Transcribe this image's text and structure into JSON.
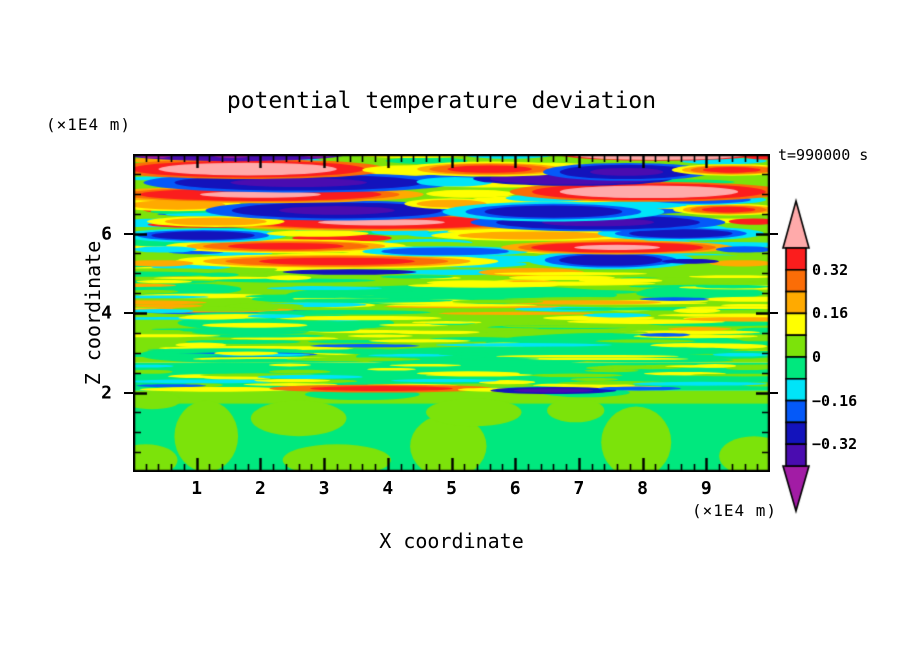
{
  "figure": {
    "title": "potential temperature deviation",
    "top_left_unit": "(×1E4 m)",
    "time_label": "t=990000 s",
    "x_axis_label": "X coordinate",
    "z_axis_label": "Z coordinate",
    "bottom_right_unit": "(×1E4 m)"
  },
  "chart_data": {
    "type": "heatmap",
    "subtype": "filled_contour",
    "title": "potential temperature deviation",
    "xlabel": "X coordinate",
    "ylabel": "Z coordinate",
    "x_units": "(×1E4 m)",
    "z_units": "(×1E4 m)",
    "time_annotation": "t=990000 s",
    "x_range": [
      0,
      10
    ],
    "z_range": [
      0,
      8
    ],
    "x_major_ticks": [
      1,
      2,
      3,
      4,
      5,
      6,
      7,
      8,
      9
    ],
    "x_minor_step": 0.2,
    "z_major_ticks": [
      2,
      4,
      6
    ],
    "z_minor_step": 0.5,
    "contour_interval": 0.08,
    "colorbar": {
      "orientation": "vertical",
      "levels_top_to_bottom": [
        0.4,
        0.32,
        0.24,
        0.16,
        0.08,
        0,
        -0.08,
        -0.16,
        -0.24,
        -0.32,
        -0.4
      ],
      "labels": [
        {
          "text": "0.32",
          "boundary_index": 1
        },
        {
          "text": "0.16",
          "boundary_index": 3
        },
        {
          "text": "0",
          "boundary_index": 5
        },
        {
          "text": "−0.16",
          "boundary_index": 7
        },
        {
          "text": "−0.32",
          "boundary_index": 9
        }
      ],
      "block_colors_top_to_bottom": [
        "red",
        "orangered",
        "orange",
        "yellow",
        "chartreuse",
        "springgreen",
        "cyan",
        "blue",
        "navy",
        "indigo"
      ],
      "over_arrow_color": "pink",
      "under_arrow_color": "magenta"
    },
    "colors": {
      "pink": "#FFAAAA",
      "red": "#FB1D1D",
      "orangered": "#FB6D07",
      "orange": "#FFAA00",
      "yellow": "#FFFF00",
      "chartreuse": "#7CE30A",
      "springgreen": "#00E87E",
      "cyan": "#00E4F8",
      "blue": "#0459F9",
      "navy": "#1313BC",
      "indigo": "#4A0CB0",
      "magenta": "#A21CA5"
    },
    "field": {
      "description": "Stratified turbulence: strong gravity-wave bands aloft (z>5, deviations beyond ±0.32), weak thin layered anomalies for 2<z<5 (mostly 0 to ±0.16), smooth convective cells below z≈2 (near 0), sharp mixed streak layer at z≈2, purple/pink extreme bands along the top edge.",
      "background_strips": [
        {
          "z0": 0.0,
          "z1": 2.05,
          "color": "springgreen"
        },
        {
          "z0": 1.72,
          "z1": 2.05,
          "color": "chartreuse"
        },
        {
          "z0": 2.05,
          "z1": 2.75,
          "color": "springgreen"
        },
        {
          "z0": 2.75,
          "z1": 8.05,
          "color": "chartreuse"
        }
      ],
      "texture_seed": 11,
      "texture": [
        {
          "z0": 5.0,
          "z1": 7.85,
          "count": 120,
          "rx": [
            0.35,
            1.2
          ],
          "rz": [
            0.05,
            0.11
          ],
          "colors": [
            {
              "c": "yellow",
              "w": 0.3
            },
            {
              "c": "cyan",
              "w": 0.2
            },
            {
              "c": "springgreen",
              "w": 0.18
            },
            {
              "c": "chartreuse",
              "w": 0.12
            },
            {
              "c": "orange",
              "w": 0.08
            },
            {
              "c": "blue",
              "w": 0.06
            },
            {
              "c": "red",
              "w": 0.03
            },
            {
              "c": "navy",
              "w": 0.03
            }
          ]
        },
        {
          "z0": 2.8,
          "z1": 5.0,
          "count": 150,
          "rx": [
            0.3,
            1.5
          ],
          "rz": [
            0.03,
            0.065
          ],
          "colors": [
            {
              "c": "yellow",
              "w": 0.4
            },
            {
              "c": "springgreen",
              "w": 0.32
            },
            {
              "c": "chartreuse",
              "w": 0.16
            },
            {
              "c": "cyan",
              "w": 0.07
            },
            {
              "c": "orange",
              "w": 0.03
            },
            {
              "c": "blue",
              "w": 0.02
            }
          ]
        },
        {
          "z0": 2.12,
          "z1": 2.7,
          "count": 40,
          "rx": [
            0.3,
            0.9
          ],
          "rz": [
            0.03,
            0.055
          ],
          "colors": [
            {
              "c": "chartreuse",
              "w": 0.45
            },
            {
              "c": "yellow",
              "w": 0.33
            },
            {
              "c": "cyan",
              "w": 0.22
            }
          ]
        }
      ],
      "stacks": {
        "warm1": [
          {
            "c": "yellow",
            "s": 1.35
          },
          {
            "c": "orange",
            "s": 1.0
          }
        ],
        "warm2": [
          {
            "c": "yellow",
            "s": 1.45
          },
          {
            "c": "orange",
            "s": 1.2
          },
          {
            "c": "orangered",
            "s": 1.0
          },
          {
            "c": "red",
            "s": 0.7
          }
        ],
        "warm2thin": [
          {
            "c": "orangered",
            "s": 1.1
          },
          {
            "c": "red",
            "s": 0.7
          }
        ],
        "warm3": [
          {
            "c": "orange",
            "s": 1.35
          },
          {
            "c": "orangered",
            "s": 1.15
          },
          {
            "c": "red",
            "s": 1.0
          },
          {
            "c": "pink",
            "s": 0.5
          }
        ],
        "warm3big": [
          {
            "c": "orangered",
            "s": 1.25
          },
          {
            "c": "red",
            "s": 1.05
          },
          {
            "c": "pink",
            "s": 0.8
          }
        ],
        "cold1": [
          {
            "c": "cyan",
            "s": 1.3
          },
          {
            "c": "blue",
            "s": 1.0
          }
        ],
        "cold2": [
          {
            "c": "cyan",
            "s": 1.45
          },
          {
            "c": "blue",
            "s": 1.15
          },
          {
            "c": "navy",
            "s": 0.9
          }
        ],
        "cold3": [
          {
            "c": "blue",
            "s": 1.25
          },
          {
            "c": "navy",
            "s": 1.0
          },
          {
            "c": "indigo",
            "s": 0.55
          }
        ],
        "cold3thin": [
          {
            "c": "navy",
            "s": 1.1
          },
          {
            "c": "indigo",
            "s": 0.7
          }
        ],
        "indigo2": [
          {
            "c": "navy",
            "s": 1.2
          },
          {
            "c": "indigo",
            "s": 1.0
          }
        ],
        "pinkband": [
          {
            "c": "red",
            "s": 1.12
          },
          {
            "c": "pink",
            "s": 1.0
          }
        ],
        "yellow1": [
          {
            "c": "yellow",
            "s": 1.0
          }
        ],
        "cyan1": [
          {
            "c": "cyan",
            "s": 1.0
          }
        ],
        "green1": [
          {
            "c": "springgreen",
            "s": 1.0
          }
        ],
        "chart1": [
          {
            "c": "chartreuse",
            "s": 1.0
          }
        ],
        "red1": [
          {
            "c": "red",
            "s": 1.0
          }
        ],
        "blue1": [
          {
            "c": "blue",
            "s": 1.0
          }
        ],
        "navy1": [
          {
            "c": "navy",
            "s": 1.0
          }
        ],
        "indigo1": [
          {
            "c": "indigo",
            "s": 1.0
          }
        ],
        "magenta1": [
          {
            "c": "magenta",
            "s": 1.0
          }
        ],
        "orange1": [
          {
            "c": "orange",
            "s": 1.0
          }
        ]
      },
      "features_under": [
        {
          "x": 1.15,
          "z": 0.9,
          "rx": 0.5,
          "rz": 0.9,
          "stack": "chart1"
        },
        {
          "x": 2.6,
          "z": 1.35,
          "rx": 0.75,
          "rz": 0.45,
          "stack": "chart1"
        },
        {
          "x": 3.2,
          "z": 0.3,
          "rx": 0.85,
          "rz": 0.4,
          "stack": "chart1"
        },
        {
          "x": 4.95,
          "z": 0.65,
          "rx": 0.6,
          "rz": 0.8,
          "stack": "chart1"
        },
        {
          "x": 5.35,
          "z": 1.5,
          "rx": 0.75,
          "rz": 0.35,
          "stack": "chart1"
        },
        {
          "x": 7.9,
          "z": 0.75,
          "rx": 0.55,
          "rz": 0.9,
          "stack": "chart1"
        },
        {
          "x": 9.75,
          "z": 0.4,
          "rx": 0.55,
          "rz": 0.5,
          "stack": "chart1"
        },
        {
          "x": 6.95,
          "z": 1.55,
          "rx": 0.45,
          "rz": 0.3,
          "stack": "chart1"
        },
        {
          "x": 0.3,
          "z": 1.8,
          "rx": 0.45,
          "rz": 0.22,
          "stack": "chart1"
        },
        {
          "x": 0.2,
          "z": 0.3,
          "rx": 0.5,
          "rz": 0.4,
          "stack": "chart1"
        },
        {
          "x": 3.6,
          "z": 1.95,
          "rx": 0.9,
          "rz": 0.14,
          "stack": "green1"
        },
        {
          "x": 7.1,
          "z": 2.0,
          "rx": 0.7,
          "rz": 0.12,
          "stack": "green1"
        },
        {
          "x": 5.0,
          "z": 4.45,
          "rx": 2.6,
          "rz": 0.25,
          "stack": "green1"
        },
        {
          "x": 2.4,
          "z": 3.75,
          "rx": 1.7,
          "rz": 0.22,
          "stack": "green1"
        },
        {
          "x": 7.6,
          "z": 3.2,
          "rx": 2.1,
          "rz": 0.3,
          "stack": "green1"
        },
        {
          "x": 1.4,
          "z": 2.95,
          "rx": 1.3,
          "rz": 0.2,
          "stack": "green1"
        },
        {
          "x": 5.4,
          "z": 2.9,
          "rx": 1.9,
          "rz": 0.25,
          "stack": "green1"
        },
        {
          "x": 8.9,
          "z": 4.5,
          "rx": 1.0,
          "rz": 0.18,
          "stack": "green1"
        },
        {
          "x": 0.8,
          "z": 4.6,
          "rx": 0.9,
          "rz": 0.15,
          "stack": "green1"
        }
      ],
      "features_over": [
        {
          "x": 1.1,
          "z": 2.28,
          "rx": 1.15,
          "rz": 0.05,
          "stack": "cyan1"
        },
        {
          "x": 0.6,
          "z": 2.17,
          "rx": 0.55,
          "rz": 0.04,
          "stack": "blue1"
        },
        {
          "x": 1.3,
          "z": 2.08,
          "rx": 1.2,
          "rz": 0.06,
          "stack": "yellow1"
        },
        {
          "x": 3.9,
          "z": 2.1,
          "rx": 1.6,
          "rz": 0.09,
          "stack": "warm2thin"
        },
        {
          "x": 5.65,
          "z": 2.07,
          "rx": 0.55,
          "rz": 0.05,
          "stack": "yellow1"
        },
        {
          "x": 6.6,
          "z": 2.05,
          "rx": 0.9,
          "rz": 0.08,
          "stack": "cold3thin"
        },
        {
          "x": 7.95,
          "z": 2.1,
          "rx": 0.65,
          "rz": 0.05,
          "stack": "blue1"
        },
        {
          "x": 8.9,
          "z": 2.22,
          "rx": 1.05,
          "rz": 0.05,
          "stack": "cyan1"
        },
        {
          "x": 4.9,
          "z": 2.3,
          "rx": 0.85,
          "rz": 0.04,
          "stack": "cyan1"
        },
        {
          "x": 2.5,
          "z": 2.3,
          "rx": 0.6,
          "rz": 0.04,
          "stack": "yellow1"
        },
        {
          "x": 0.45,
          "z": 4.05,
          "rx": 0.5,
          "rz": 0.05,
          "stack": "cyan1"
        },
        {
          "x": 2.25,
          "z": 3.92,
          "rx": 0.45,
          "rz": 0.05,
          "stack": "cyan1"
        },
        {
          "x": 0.55,
          "z": 4.18,
          "rx": 0.55,
          "rz": 0.045,
          "stack": "orange1"
        },
        {
          "x": 8.5,
          "z": 4.35,
          "rx": 0.55,
          "rz": 0.045,
          "stack": "blue1"
        },
        {
          "x": 8.9,
          "z": 3.6,
          "rx": 0.5,
          "rz": 0.045,
          "stack": "orange1"
        },
        {
          "x": 8.35,
          "z": 3.45,
          "rx": 0.4,
          "rz": 0.045,
          "stack": "blue1"
        },
        {
          "x": 9.55,
          "z": 2.95,
          "rx": 0.45,
          "rz": 0.045,
          "stack": "cyan1"
        },
        {
          "x": 4.5,
          "z": 3.3,
          "rx": 0.8,
          "rz": 0.04,
          "stack": "yellow1"
        },
        {
          "x": 3.2,
          "z": 5.3,
          "rx": 1.75,
          "rz": 0.13,
          "stack": "warm2"
        },
        {
          "x": 7.5,
          "z": 5.33,
          "rx": 0.9,
          "rz": 0.16,
          "stack": "cold2"
        },
        {
          "x": 3.4,
          "z": 5.03,
          "rx": 1.05,
          "rz": 0.07,
          "stack": "navy1"
        },
        {
          "x": 0.4,
          "z": 5.25,
          "rx": 0.55,
          "rz": 0.08,
          "stack": "orange1"
        },
        {
          "x": 9.55,
          "z": 5.25,
          "rx": 0.5,
          "rz": 0.08,
          "stack": "orange1"
        },
        {
          "x": 8.75,
          "z": 5.3,
          "rx": 0.45,
          "rz": 0.06,
          "stack": "navy1"
        },
        {
          "x": 2.4,
          "z": 5.68,
          "rx": 1.3,
          "rz": 0.12,
          "stack": "warm2"
        },
        {
          "x": 4.9,
          "z": 5.55,
          "rx": 1.0,
          "rz": 0.1,
          "stack": "cold1"
        },
        {
          "x": 7.6,
          "z": 5.65,
          "rx": 1.35,
          "rz": 0.13,
          "stack": "warm3"
        },
        {
          "x": 9.6,
          "z": 5.6,
          "rx": 0.45,
          "rz": 0.08,
          "stack": "blue1"
        },
        {
          "x": 0.5,
          "z": 5.6,
          "rx": 0.5,
          "rz": 0.08,
          "stack": "cyan1"
        },
        {
          "x": 1.1,
          "z": 5.95,
          "rx": 0.9,
          "rz": 0.12,
          "stack": "cold2"
        },
        {
          "x": 2.9,
          "z": 6.0,
          "rx": 0.8,
          "rz": 0.08,
          "stack": "yellow1"
        },
        {
          "x": 6.3,
          "z": 5.95,
          "rx": 1.2,
          "rz": 0.1,
          "stack": "warm1"
        },
        {
          "x": 8.6,
          "z": 6.0,
          "rx": 0.9,
          "rz": 0.12,
          "stack": "cold2"
        },
        {
          "x": 3.9,
          "z": 6.28,
          "rx": 2.0,
          "rz": 0.16,
          "stack": "warm3"
        },
        {
          "x": 1.3,
          "z": 6.3,
          "rx": 0.8,
          "rz": 0.1,
          "stack": "warm1"
        },
        {
          "x": 7.3,
          "z": 6.28,
          "rx": 1.6,
          "rz": 0.18,
          "stack": "cold3"
        },
        {
          "x": 9.75,
          "z": 6.3,
          "rx": 0.4,
          "rz": 0.08,
          "stack": "red1"
        },
        {
          "x": 0.7,
          "z": 6.72,
          "rx": 0.75,
          "rz": 0.12,
          "stack": "warm1"
        },
        {
          "x": 3.2,
          "z": 6.58,
          "rx": 1.65,
          "rz": 0.2,
          "stack": "cold3"
        },
        {
          "x": 5.0,
          "z": 6.75,
          "rx": 0.55,
          "rz": 0.1,
          "stack": "warm1"
        },
        {
          "x": 6.6,
          "z": 6.55,
          "rx": 1.2,
          "rz": 0.17,
          "stack": "cold2"
        },
        {
          "x": 9.35,
          "z": 6.6,
          "rx": 0.6,
          "rz": 0.1,
          "stack": "warm2"
        },
        {
          "x": 8.9,
          "z": 6.85,
          "rx": 0.8,
          "rz": 0.1,
          "stack": "cold1"
        },
        {
          "x": 2.0,
          "z": 6.98,
          "rx": 1.9,
          "rz": 0.16,
          "stack": "warm3"
        },
        {
          "x": 5.3,
          "z": 7.0,
          "rx": 0.7,
          "rz": 0.1,
          "stack": "yellow1"
        },
        {
          "x": 8.1,
          "z": 7.05,
          "rx": 1.75,
          "rz": 0.2,
          "stack": "warm3big"
        },
        {
          "x": 2.6,
          "z": 7.28,
          "rx": 1.95,
          "rz": 0.2,
          "stack": "cold3"
        },
        {
          "x": 5.05,
          "z": 7.3,
          "rx": 0.6,
          "rz": 0.12,
          "stack": "cyan1"
        },
        {
          "x": 6.9,
          "z": 7.38,
          "rx": 1.3,
          "rz": 0.15,
          "stack": "indigo2"
        },
        {
          "x": 1.8,
          "z": 7.62,
          "rx": 1.75,
          "rz": 0.2,
          "stack": "warm3big"
        },
        {
          "x": 4.4,
          "z": 7.6,
          "rx": 0.8,
          "rz": 0.12,
          "stack": "yellow1"
        },
        {
          "x": 5.6,
          "z": 7.62,
          "rx": 0.95,
          "rz": 0.13,
          "stack": "warm2"
        },
        {
          "x": 7.75,
          "z": 7.55,
          "rx": 1.05,
          "rz": 0.18,
          "stack": "cold3"
        },
        {
          "x": 9.4,
          "z": 7.6,
          "rx": 0.65,
          "rz": 0.1,
          "stack": "warm2"
        },
        {
          "x": 1.6,
          "z": 8.0,
          "rx": 1.75,
          "rz": 0.18,
          "stack": "indigo1"
        },
        {
          "x": 0.35,
          "z": 8.02,
          "rx": 0.32,
          "rz": 0.13,
          "stack": "magenta1"
        },
        {
          "x": 1.55,
          "z": 8.03,
          "rx": 0.38,
          "rz": 0.13,
          "stack": "magenta1"
        },
        {
          "x": 2.9,
          "z": 8.02,
          "rx": 0.3,
          "rz": 0.11,
          "stack": "magenta1"
        },
        {
          "x": 4.4,
          "z": 8.0,
          "rx": 1.0,
          "rz": 0.1,
          "stack": "yellow1"
        },
        {
          "x": 5.9,
          "z": 7.98,
          "rx": 0.7,
          "rz": 0.1,
          "stack": "cyan1"
        },
        {
          "x": 8.25,
          "z": 8.0,
          "rx": 1.42,
          "rz": 0.15,
          "stack": "pinkband"
        },
        {
          "x": 9.9,
          "z": 7.98,
          "rx": 0.35,
          "rz": 0.12,
          "stack": "red1"
        }
      ]
    }
  }
}
